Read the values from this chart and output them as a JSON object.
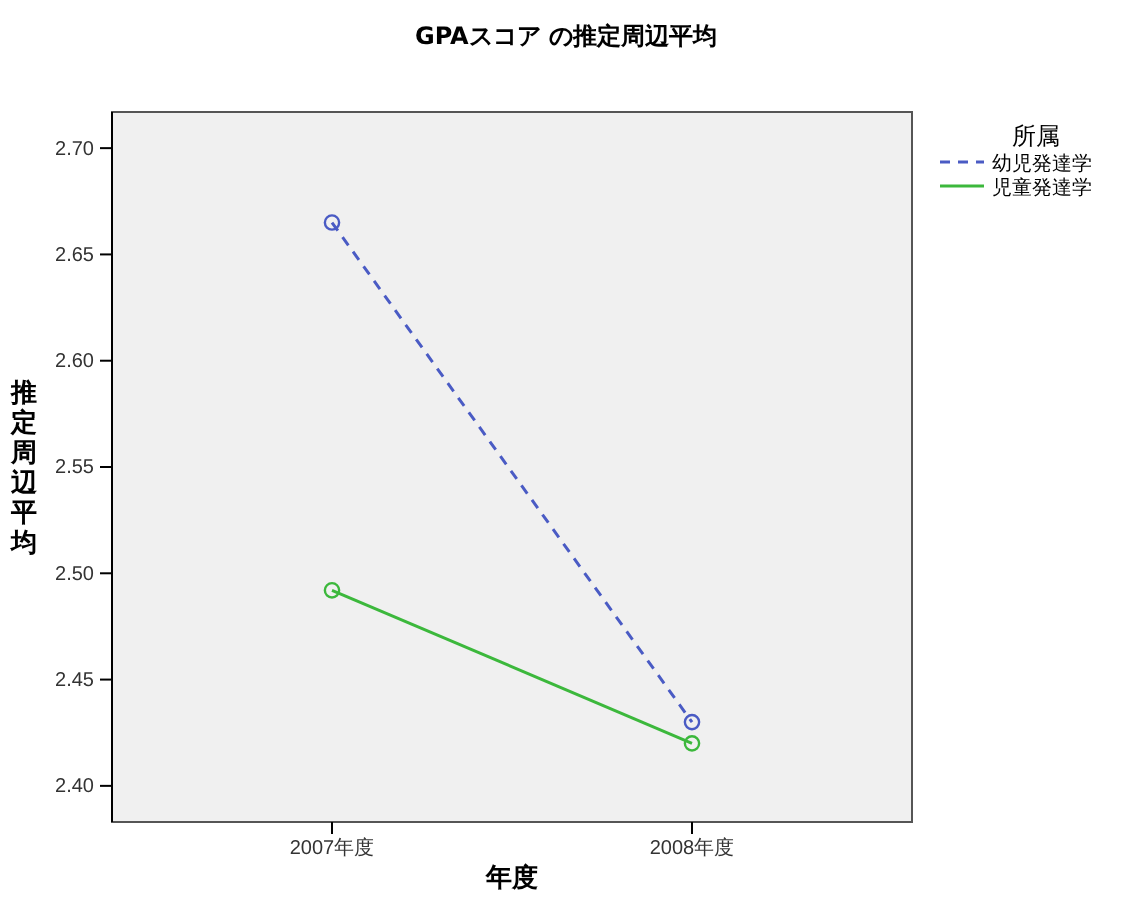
{
  "chart_data": {
    "type": "line",
    "title": "GPAスコア の推定周辺平均",
    "xlabel": "年度",
    "ylabel": "推定周辺平均",
    "legend_title": "所属",
    "categories": [
      "2007年度",
      "2008年度"
    ],
    "series": [
      {
        "name": "幼児発達学",
        "color": "#4a5bc4",
        "values": [
          2.665,
          2.43
        ],
        "line_style": "dashed"
      },
      {
        "name": "児童発達学",
        "color": "#3cb83c",
        "values": [
          2.492,
          2.42
        ],
        "line_style": "solid"
      }
    ],
    "ylim": [
      2.383,
      2.717
    ],
    "yticks": [
      {
        "value": 2.4,
        "label": "2.40"
      },
      {
        "value": 2.45,
        "label": "2.45"
      },
      {
        "value": 2.5,
        "label": "2.50"
      },
      {
        "value": 2.55,
        "label": "2.55"
      },
      {
        "value": 2.6,
        "label": "2.60"
      },
      {
        "value": 2.65,
        "label": "2.65"
      },
      {
        "value": 2.7,
        "label": "2.70"
      }
    ],
    "marker": "circle",
    "legend": "top right",
    "grid": false
  }
}
